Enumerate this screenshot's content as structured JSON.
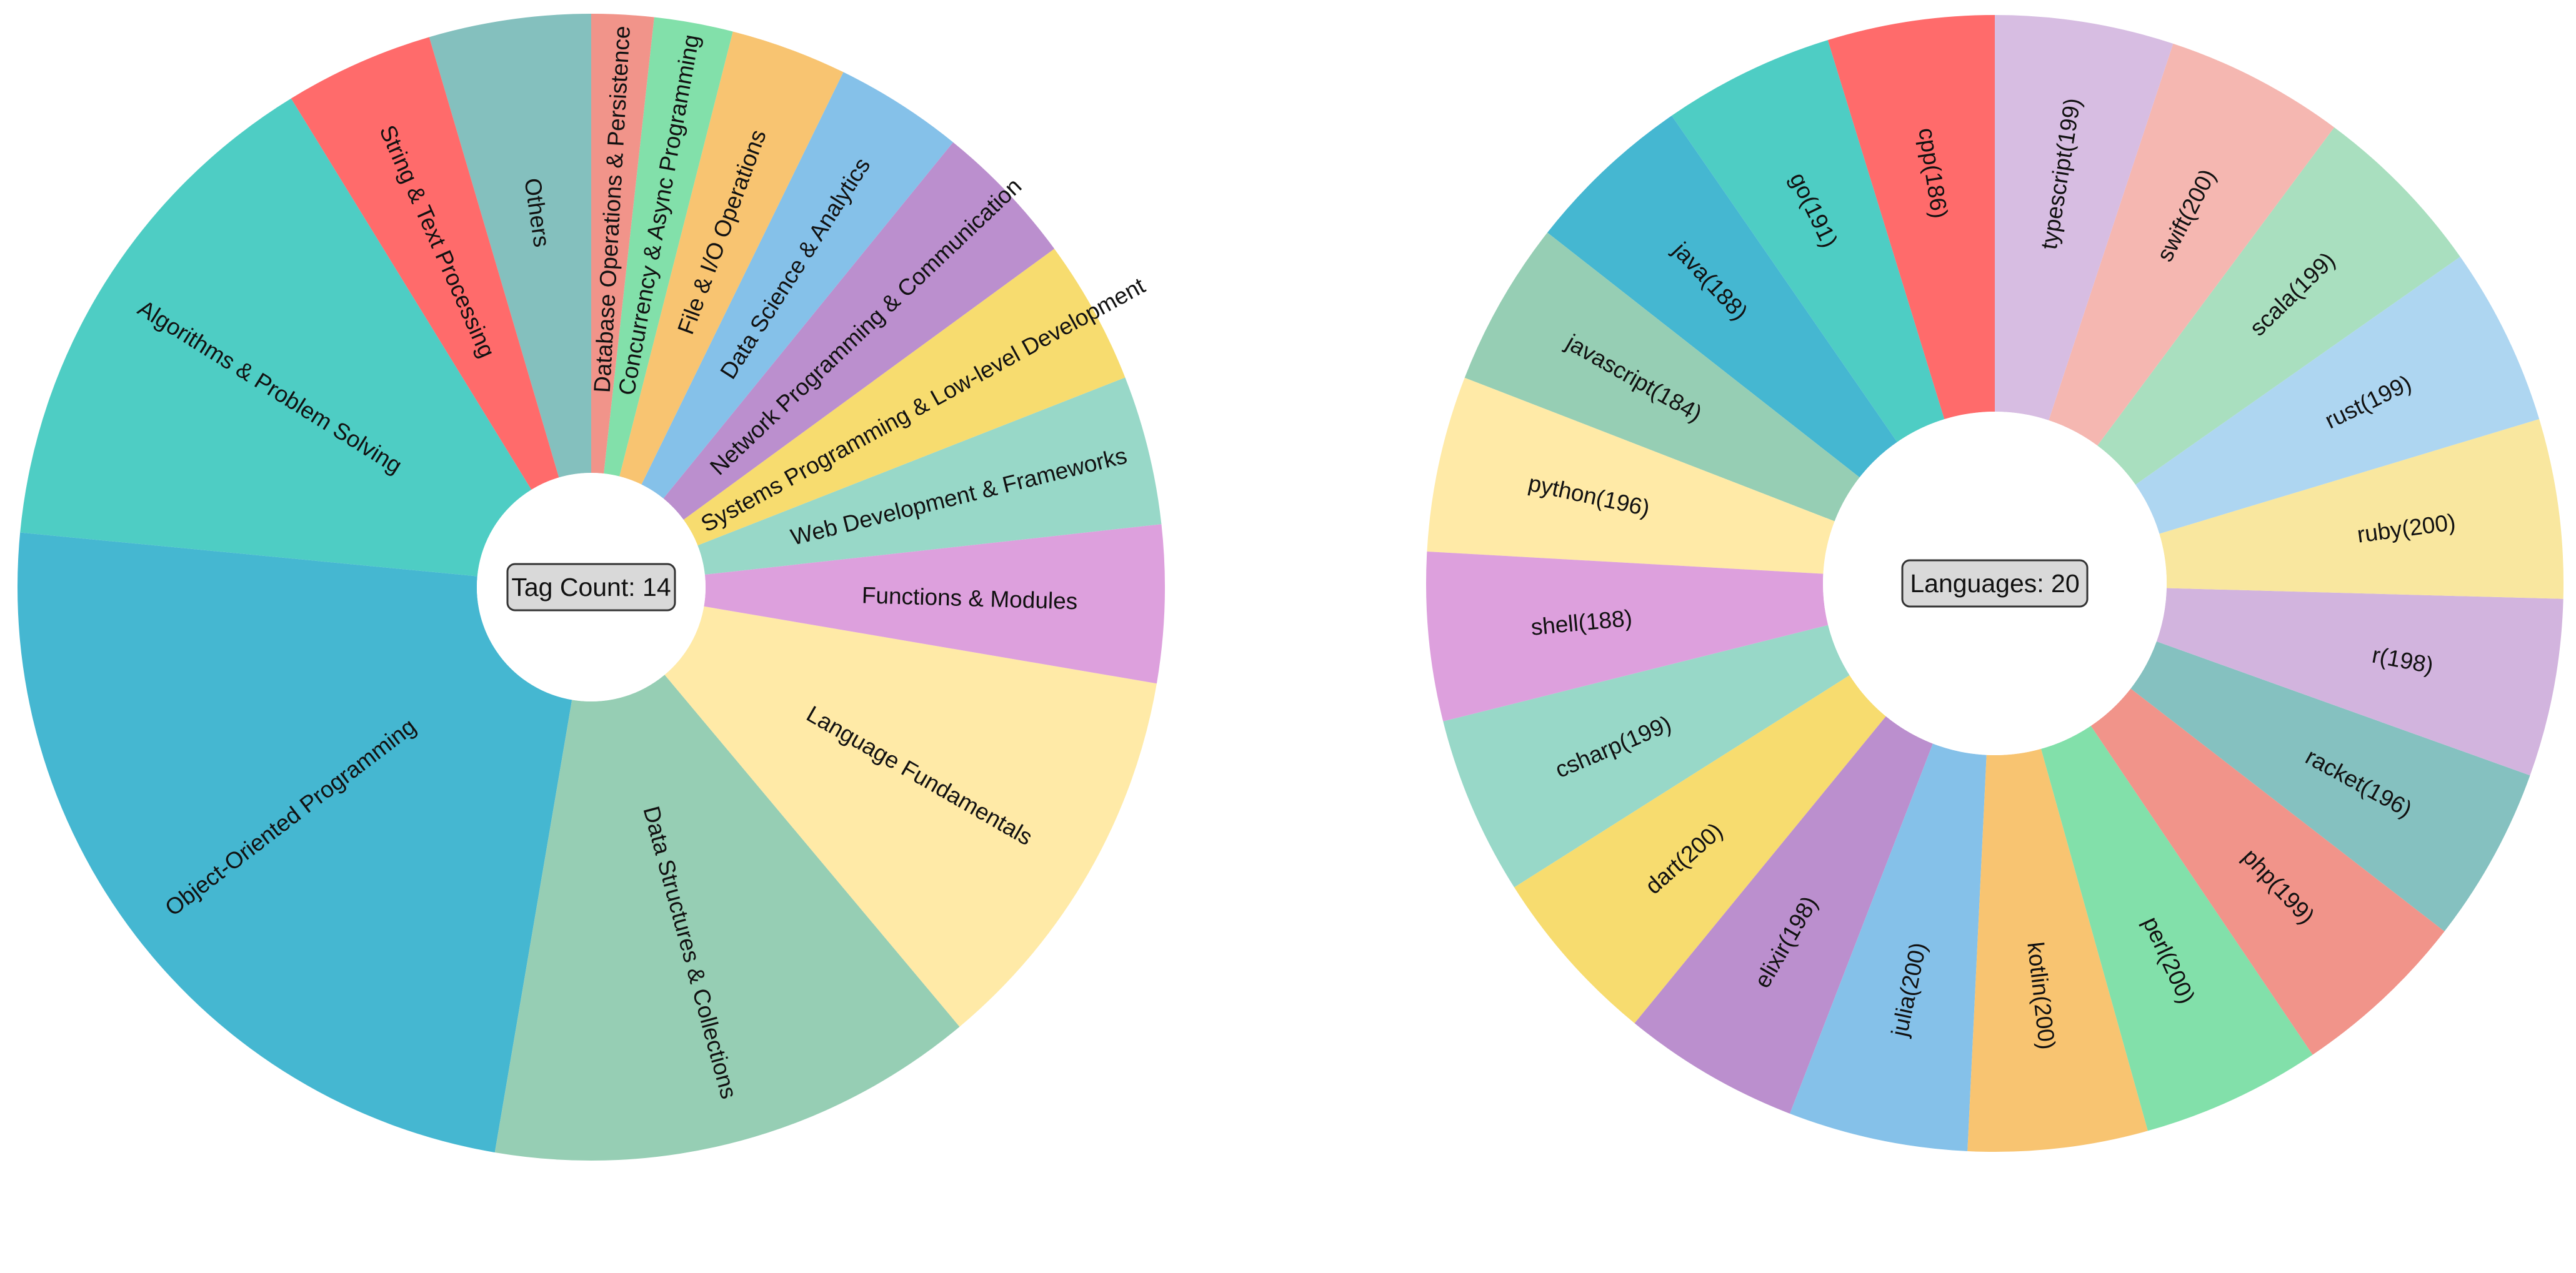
{
  "chart_data": [
    {
      "type": "pie",
      "donut": true,
      "center_label": "Tag Count: 14",
      "start_angle_deg": 90,
      "direction": "counterclockwise",
      "slices": [
        {
          "label": "Others",
          "value": 3.9,
          "color": "#84c0be"
        },
        {
          "label": "String & Text Processing",
          "value": 3.6,
          "color": "#ff6b6b"
        },
        {
          "label": "Algorithms & Problem Solving",
          "value": 12.6,
          "color": "#4ecdc4"
        },
        {
          "label": "Object-Oriented Programming",
          "value": 20.4,
          "color": "#45b7d1"
        },
        {
          "label": "Data Structures & Collections",
          "value": 11.8,
          "color": "#96ceb4"
        },
        {
          "label": "Language Fundamentals",
          "value": 9.6,
          "color": "#ffeaa7"
        },
        {
          "label": "Functions & Modules",
          "value": 3.8,
          "color": "#dda0dd"
        },
        {
          "label": "Web Development & Frameworks",
          "value": 3.6,
          "color": "#98d8c8"
        },
        {
          "label": "Systems Programming & Low-level Development",
          "value": 3.5,
          "color": "#f7dc6f"
        },
        {
          "label": "Network Programming & Communication",
          "value": 3.5,
          "color": "#bb8fce"
        },
        {
          "label": "Data Science & Analytics",
          "value": 3.1,
          "color": "#85c1e9"
        },
        {
          "label": "File & I/O Operations",
          "value": 2.8,
          "color": "#f8c471"
        },
        {
          "label": "Concurrency & Async Programming",
          "value": 1.9,
          "color": "#82e0aa"
        },
        {
          "label": "Database Operations & Persistence",
          "value": 1.5,
          "color": "#f1948a"
        }
      ]
    },
    {
      "type": "pie",
      "donut": true,
      "center_label": "Languages: 20",
      "start_angle_deg": 90,
      "direction": "counterclockwise",
      "slices": [
        {
          "label": "cpp(186)",
          "value": 186,
          "color": "#ff6b6b"
        },
        {
          "label": "go(191)",
          "value": 191,
          "color": "#4ecdc4"
        },
        {
          "label": "java(188)",
          "value": 188,
          "color": "#45b7d1"
        },
        {
          "label": "javascript(184)",
          "value": 184,
          "color": "#96ceb4"
        },
        {
          "label": "python(196)",
          "value": 196,
          "color": "#ffeaa7"
        },
        {
          "label": "shell(188)",
          "value": 188,
          "color": "#dda0dd"
        },
        {
          "label": "csharp(199)",
          "value": 199,
          "color": "#98d8c8"
        },
        {
          "label": "dart(200)",
          "value": 200,
          "color": "#f7dc6f"
        },
        {
          "label": "elixir(198)",
          "value": 198,
          "color": "#bb8fce"
        },
        {
          "label": "julia(200)",
          "value": 200,
          "color": "#85c1e9"
        },
        {
          "label": "kotlin(200)",
          "value": 200,
          "color": "#f8c471"
        },
        {
          "label": "perl(200)",
          "value": 200,
          "color": "#82e0aa"
        },
        {
          "label": "php(199)",
          "value": 199,
          "color": "#f1948a"
        },
        {
          "label": "racket(196)",
          "value": 196,
          "color": "#85c1c0"
        },
        {
          "label": "r(198)",
          "value": 198,
          "color": "#d2b4de"
        },
        {
          "label": "ruby(200)",
          "value": 200,
          "color": "#f9e79f"
        },
        {
          "label": "rust(199)",
          "value": 199,
          "color": "#aed6f1"
        },
        {
          "label": "scala(199)",
          "value": 199,
          "color": "#a9dfbf"
        },
        {
          "label": "swift(200)",
          "value": 200,
          "color": "#f5b7b1"
        },
        {
          "label": "typescript(199)",
          "value": 199,
          "color": "#d7bde2"
        }
      ]
    }
  ]
}
